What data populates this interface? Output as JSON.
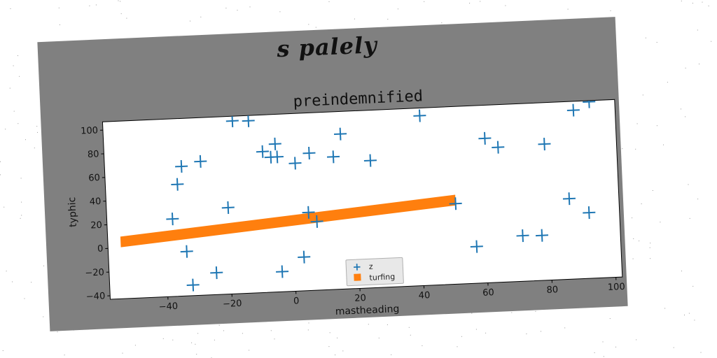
{
  "chart_data": {
    "type": "scatter",
    "suptitle": "s palely",
    "title": "preindemnified",
    "xlabel": "mastheading",
    "ylabel": "typhic",
    "xlim": [
      -58,
      102
    ],
    "ylim": [
      -43,
      107
    ],
    "xticks": [
      -40,
      -20,
      0,
      20,
      40,
      60,
      80,
      100
    ],
    "yticks": [
      -40,
      -20,
      0,
      20,
      40,
      60,
      80,
      100
    ],
    "grid": false,
    "legend_position": "lower center",
    "series": [
      {
        "name": "z",
        "kind": "scatter",
        "marker": "+",
        "color": "#1f77b4",
        "points": [
          [
            -37.5,
            22.5
          ],
          [
            -35.5,
            51.5
          ],
          [
            -34,
            66.5
          ],
          [
            -33.5,
            -5.5
          ],
          [
            -32,
            -34
          ],
          [
            -28,
            70
          ],
          [
            -24.5,
            -24.5
          ],
          [
            -20,
            30
          ],
          [
            -17.5,
            103
          ],
          [
            -12.5,
            102.5
          ],
          [
            -8.5,
            76
          ],
          [
            -6,
            71
          ],
          [
            -4.5,
            82
          ],
          [
            -4,
            71
          ],
          [
            -4,
            -26
          ],
          [
            1.5,
            65
          ],
          [
            3,
            -14.5
          ],
          [
            5,
            23
          ],
          [
            6,
            73
          ],
          [
            7.5,
            15
          ],
          [
            13.5,
            69
          ],
          [
            16,
            88
          ],
          [
            25,
            64.5
          ],
          [
            41,
            100.5
          ],
          [
            51,
            25
          ],
          [
            57,
            -12
          ],
          [
            61,
            79
          ],
          [
            65,
            71
          ],
          [
            71.5,
            -4.5
          ],
          [
            77.5,
            -5
          ],
          [
            79.5,
            72
          ],
          [
            86.5,
            25
          ],
          [
            89,
            99.5
          ],
          [
            92.5,
            12.5
          ],
          [
            94,
            106
          ]
        ]
      },
      {
        "name": "turfing",
        "kind": "band",
        "color": "#ff7f0e",
        "x": [
          -54,
          51
        ],
        "y_center": [
          5,
          28
        ],
        "thickness": 9
      }
    ]
  }
}
